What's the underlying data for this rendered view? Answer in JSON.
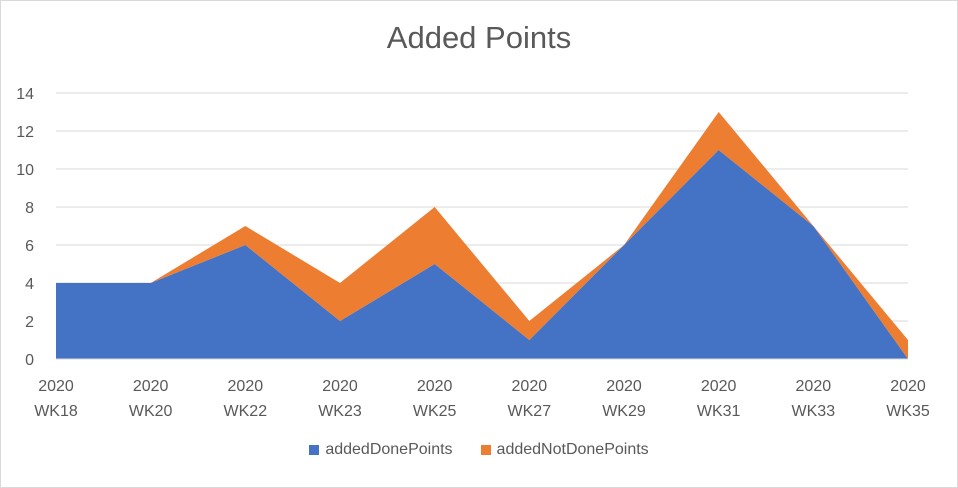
{
  "chart_data": {
    "type": "area",
    "stacked": true,
    "title": "Added Points",
    "categories": [
      [
        "2020",
        "WK18"
      ],
      [
        "2020",
        "WK20"
      ],
      [
        "2020",
        "WK22"
      ],
      [
        "2020",
        "WK23"
      ],
      [
        "2020",
        "WK25"
      ],
      [
        "2020",
        "WK27"
      ],
      [
        "2020",
        "WK29"
      ],
      [
        "2020",
        "WK31"
      ],
      [
        "2020",
        "WK33"
      ],
      [
        "2020",
        "WK35"
      ]
    ],
    "series": [
      {
        "name": "addedDonePoints",
        "color": "#4472c4",
        "values": [
          4,
          4,
          6,
          2,
          5,
          1,
          6,
          11,
          7,
          0
        ]
      },
      {
        "name": "addedNotDonePoints",
        "color": "#ed7d31",
        "values": [
          0,
          0,
          1,
          2,
          3,
          1,
          0,
          2,
          0,
          1
        ]
      }
    ],
    "ylim": [
      0,
      14
    ],
    "yticks": [
      0,
      2,
      4,
      6,
      8,
      10,
      12,
      14
    ],
    "grid": true,
    "legend": "bottom",
    "xlabel": "",
    "ylabel": ""
  }
}
